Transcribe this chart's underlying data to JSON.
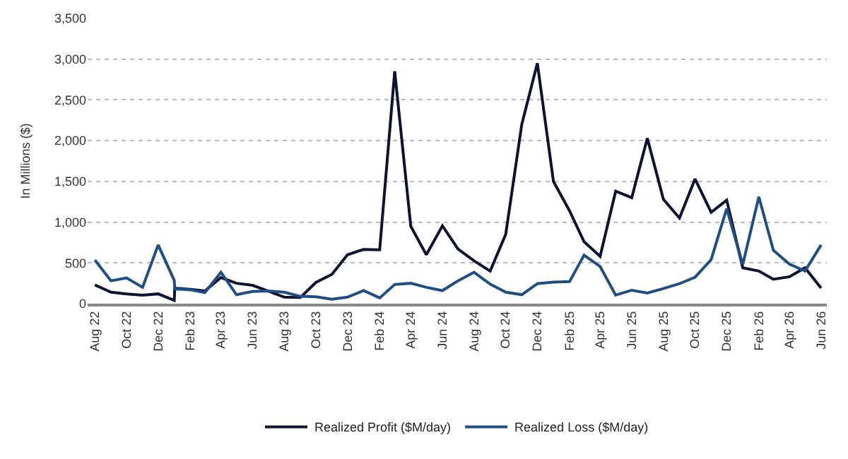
{
  "chart_data": {
    "type": "line",
    "ylabel": "In Millions ($)",
    "ylim": [
      0,
      3500
    ],
    "yticks": [
      0,
      {
        "value": 500,
        "label": "500"
      },
      {
        "value": 1000,
        "label": "1,000"
      },
      {
        "value": 1500,
        "label": "1,500"
      },
      {
        "value": 2000,
        "label": "2,000"
      },
      {
        "value": 2500,
        "label": "2,500"
      },
      {
        "value": 3000,
        "label": "3,000"
      },
      {
        "value": 3500,
        "label": "3,500"
      }
    ],
    "xlim": [
      "2022-07-18",
      "2026-06-12"
    ],
    "xticks": [
      {
        "value": "2022-08",
        "label": "Aug 22"
      },
      {
        "value": "2022-10",
        "label": "Oct 22"
      },
      {
        "value": "2022-12",
        "label": "Dec 22"
      },
      {
        "value": "2023-02",
        "label": "Feb 23"
      },
      {
        "value": "2023-04",
        "label": "Apr 23"
      },
      {
        "value": "2023-06",
        "label": "Jun 23"
      },
      {
        "value": "2023-08",
        "label": "Aug 23"
      },
      {
        "value": "2023-10",
        "label": "Oct 23"
      },
      {
        "value": "2023-12",
        "label": "Dec 23"
      },
      {
        "value": "2024-02",
        "label": "Feb 24"
      },
      {
        "value": "2024-04",
        "label": "Apr 24"
      },
      {
        "value": "2024-06",
        "label": "Jun 24"
      },
      {
        "value": "2024-08",
        "label": "Aug 24"
      },
      {
        "value": "2024-10",
        "label": "Oct 24"
      },
      {
        "value": "2024-12",
        "label": "Dec 24"
      },
      {
        "value": "2025-02",
        "label": "Feb 25"
      },
      {
        "value": "2025-04",
        "label": "Apr 25"
      },
      {
        "value": "2025-06",
        "label": "Jun 25"
      },
      {
        "value": "2025-08",
        "label": "Aug 25"
      },
      {
        "value": "2025-10",
        "label": "Oct 25"
      },
      {
        "value": "2025-12",
        "label": "Dec 25"
      },
      {
        "value": "2026-02",
        "label": "Feb 26"
      },
      {
        "value": "2026-04",
        "label": "Apr 26"
      },
      {
        "value": "2026-06",
        "label": "Jun 26"
      }
    ],
    "x": [
      "2022-08",
      "2022-09",
      "2022-10",
      "2022-11",
      "2022-12",
      "2023-01",
      "2023-01-02",
      "2023-02",
      "2023-03",
      "2023-04",
      "2023-05",
      "2023-06",
      "2023-07",
      "2023-08",
      "2023-09",
      "2023-10",
      "2023-11",
      "2023-12",
      "2024-01",
      "2024-02",
      "2024-03",
      "2024-04",
      "2024-05",
      "2024-06",
      "2024-07",
      "2024-08",
      "2024-09",
      "2024-10",
      "2024-11",
      "2024-12",
      "2025-01",
      "2025-02",
      "2025-03",
      "2025-04",
      "2025-05",
      "2025-06",
      "2025-07",
      "2025-08",
      "2025-09",
      "2025-10",
      "2025-11",
      "2025-12",
      "2026-01",
      "2026-02",
      "2026-03",
      "2026-04",
      "2026-05",
      "2026-06"
    ],
    "series": [
      {
        "name": "Realized Profit ($M/day)",
        "color": "#0d1330",
        "values": [
          230,
          140,
          120,
          105,
          120,
          40,
          190,
          175,
          155,
          320,
          250,
          225,
          155,
          80,
          75,
          260,
          360,
          600,
          665,
          660,
          2850,
          950,
          600,
          955,
          670,
          525,
          400,
          850,
          2200,
          2950,
          1500,
          1140,
          760,
          580,
          1380,
          1300,
          2030,
          1280,
          1050,
          1530,
          1120,
          1270,
          440,
          400,
          300,
          330,
          440,
          190
        ]
      },
      {
        "name": "Realized Loss ($M/day)",
        "color": "#1f4e84",
        "values": [
          535,
          280,
          315,
          200,
          720,
          285,
          180,
          170,
          135,
          385,
          110,
          150,
          155,
          140,
          90,
          85,
          55,
          80,
          160,
          70,
          235,
          250,
          200,
          160,
          280,
          385,
          240,
          140,
          110,
          245,
          265,
          270,
          595,
          455,
          105,
          165,
          130,
          185,
          245,
          325,
          540,
          1165,
          480,
          1310,
          655,
          485,
          400,
          720
        ]
      }
    ],
    "grid": "y",
    "legend": "bottom",
    "marker": "none",
    "line_style": "solid"
  }
}
